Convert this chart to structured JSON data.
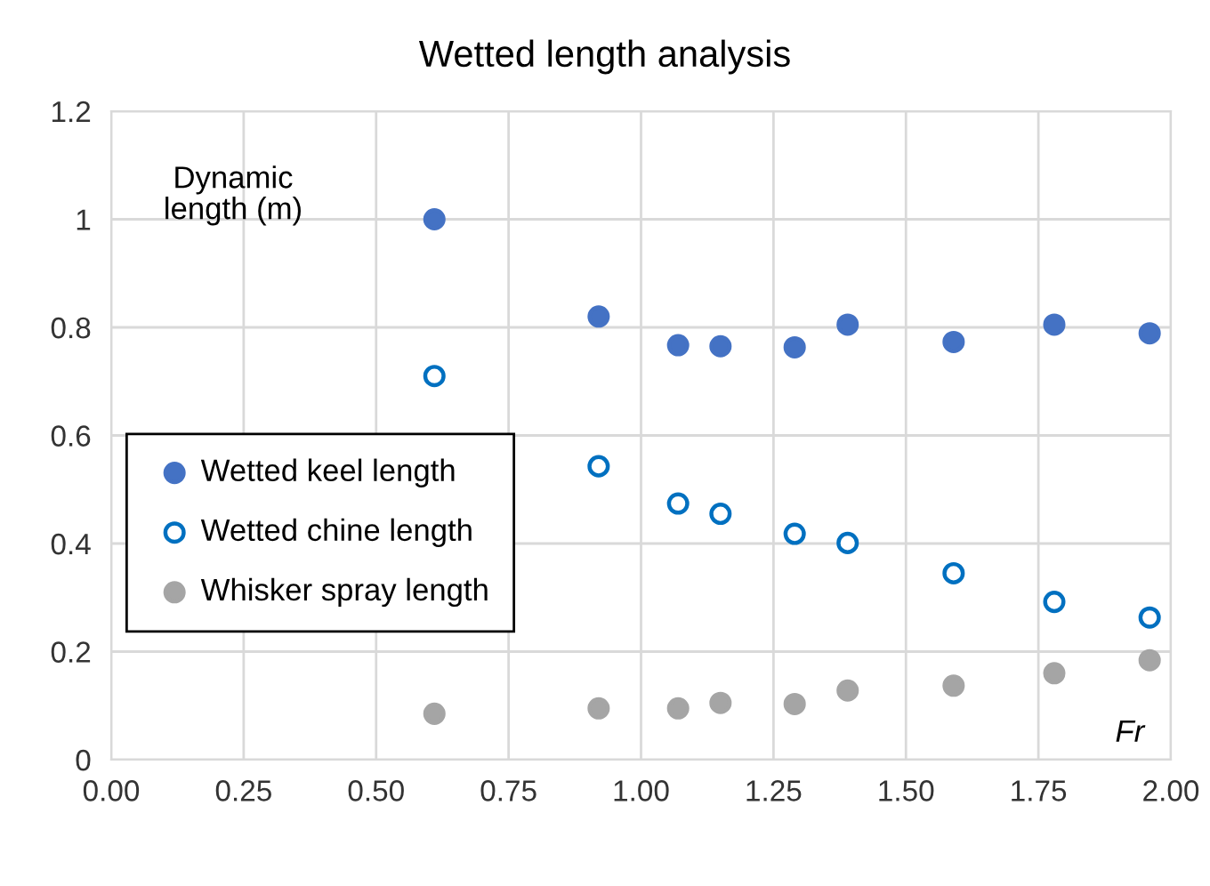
{
  "chart_data": {
    "type": "scatter",
    "title": "Wetted length analysis",
    "xlabel": "Fr",
    "ylabel": "Dynamic\nlength (m)",
    "x": [
      0.61,
      0.92,
      1.07,
      1.15,
      1.29,
      1.39,
      1.59,
      1.78,
      1.96
    ],
    "series": [
      {
        "name": "Wetted keel length",
        "color": "#4472c4",
        "marker": "circle",
        "values": [
          1.0,
          0.82,
          0.767,
          0.765,
          0.763,
          0.805,
          0.773,
          0.805,
          0.789
        ]
      },
      {
        "name": "Wetted chine length",
        "color": "#0070c0",
        "marker": "circle",
        "values": [
          0.71,
          0.543,
          0.474,
          0.455,
          0.418,
          0.401,
          0.345,
          0.292,
          0.263
        ]
      },
      {
        "name": "Whisker spray length",
        "color": "#a5a5a5",
        "marker": "circle",
        "values": [
          0.085,
          0.095,
          0.095,
          0.105,
          0.103,
          0.128,
          0.137,
          0.16,
          0.184
        ]
      }
    ],
    "xlim": [
      0,
      2
    ],
    "xticks": [
      {
        "value": 0,
        "label": "0.00"
      },
      {
        "value": 0.25,
        "label": "0.25"
      },
      {
        "value": 0.5,
        "label": "0.50"
      },
      {
        "value": 0.75,
        "label": "0.75"
      },
      {
        "value": 1,
        "label": "1.00"
      },
      {
        "value": 1.25,
        "label": "1.25"
      },
      {
        "value": 1.5,
        "label": "1.50"
      },
      {
        "value": 1.75,
        "label": "1.75"
      },
      {
        "value": 2,
        "label": "2.00"
      }
    ],
    "ylim": [
      0,
      1.2
    ],
    "yticks": [
      0,
      0.2,
      0.4,
      0.6,
      0.8,
      1,
      1.2
    ],
    "grid": true,
    "legend": "left"
  }
}
